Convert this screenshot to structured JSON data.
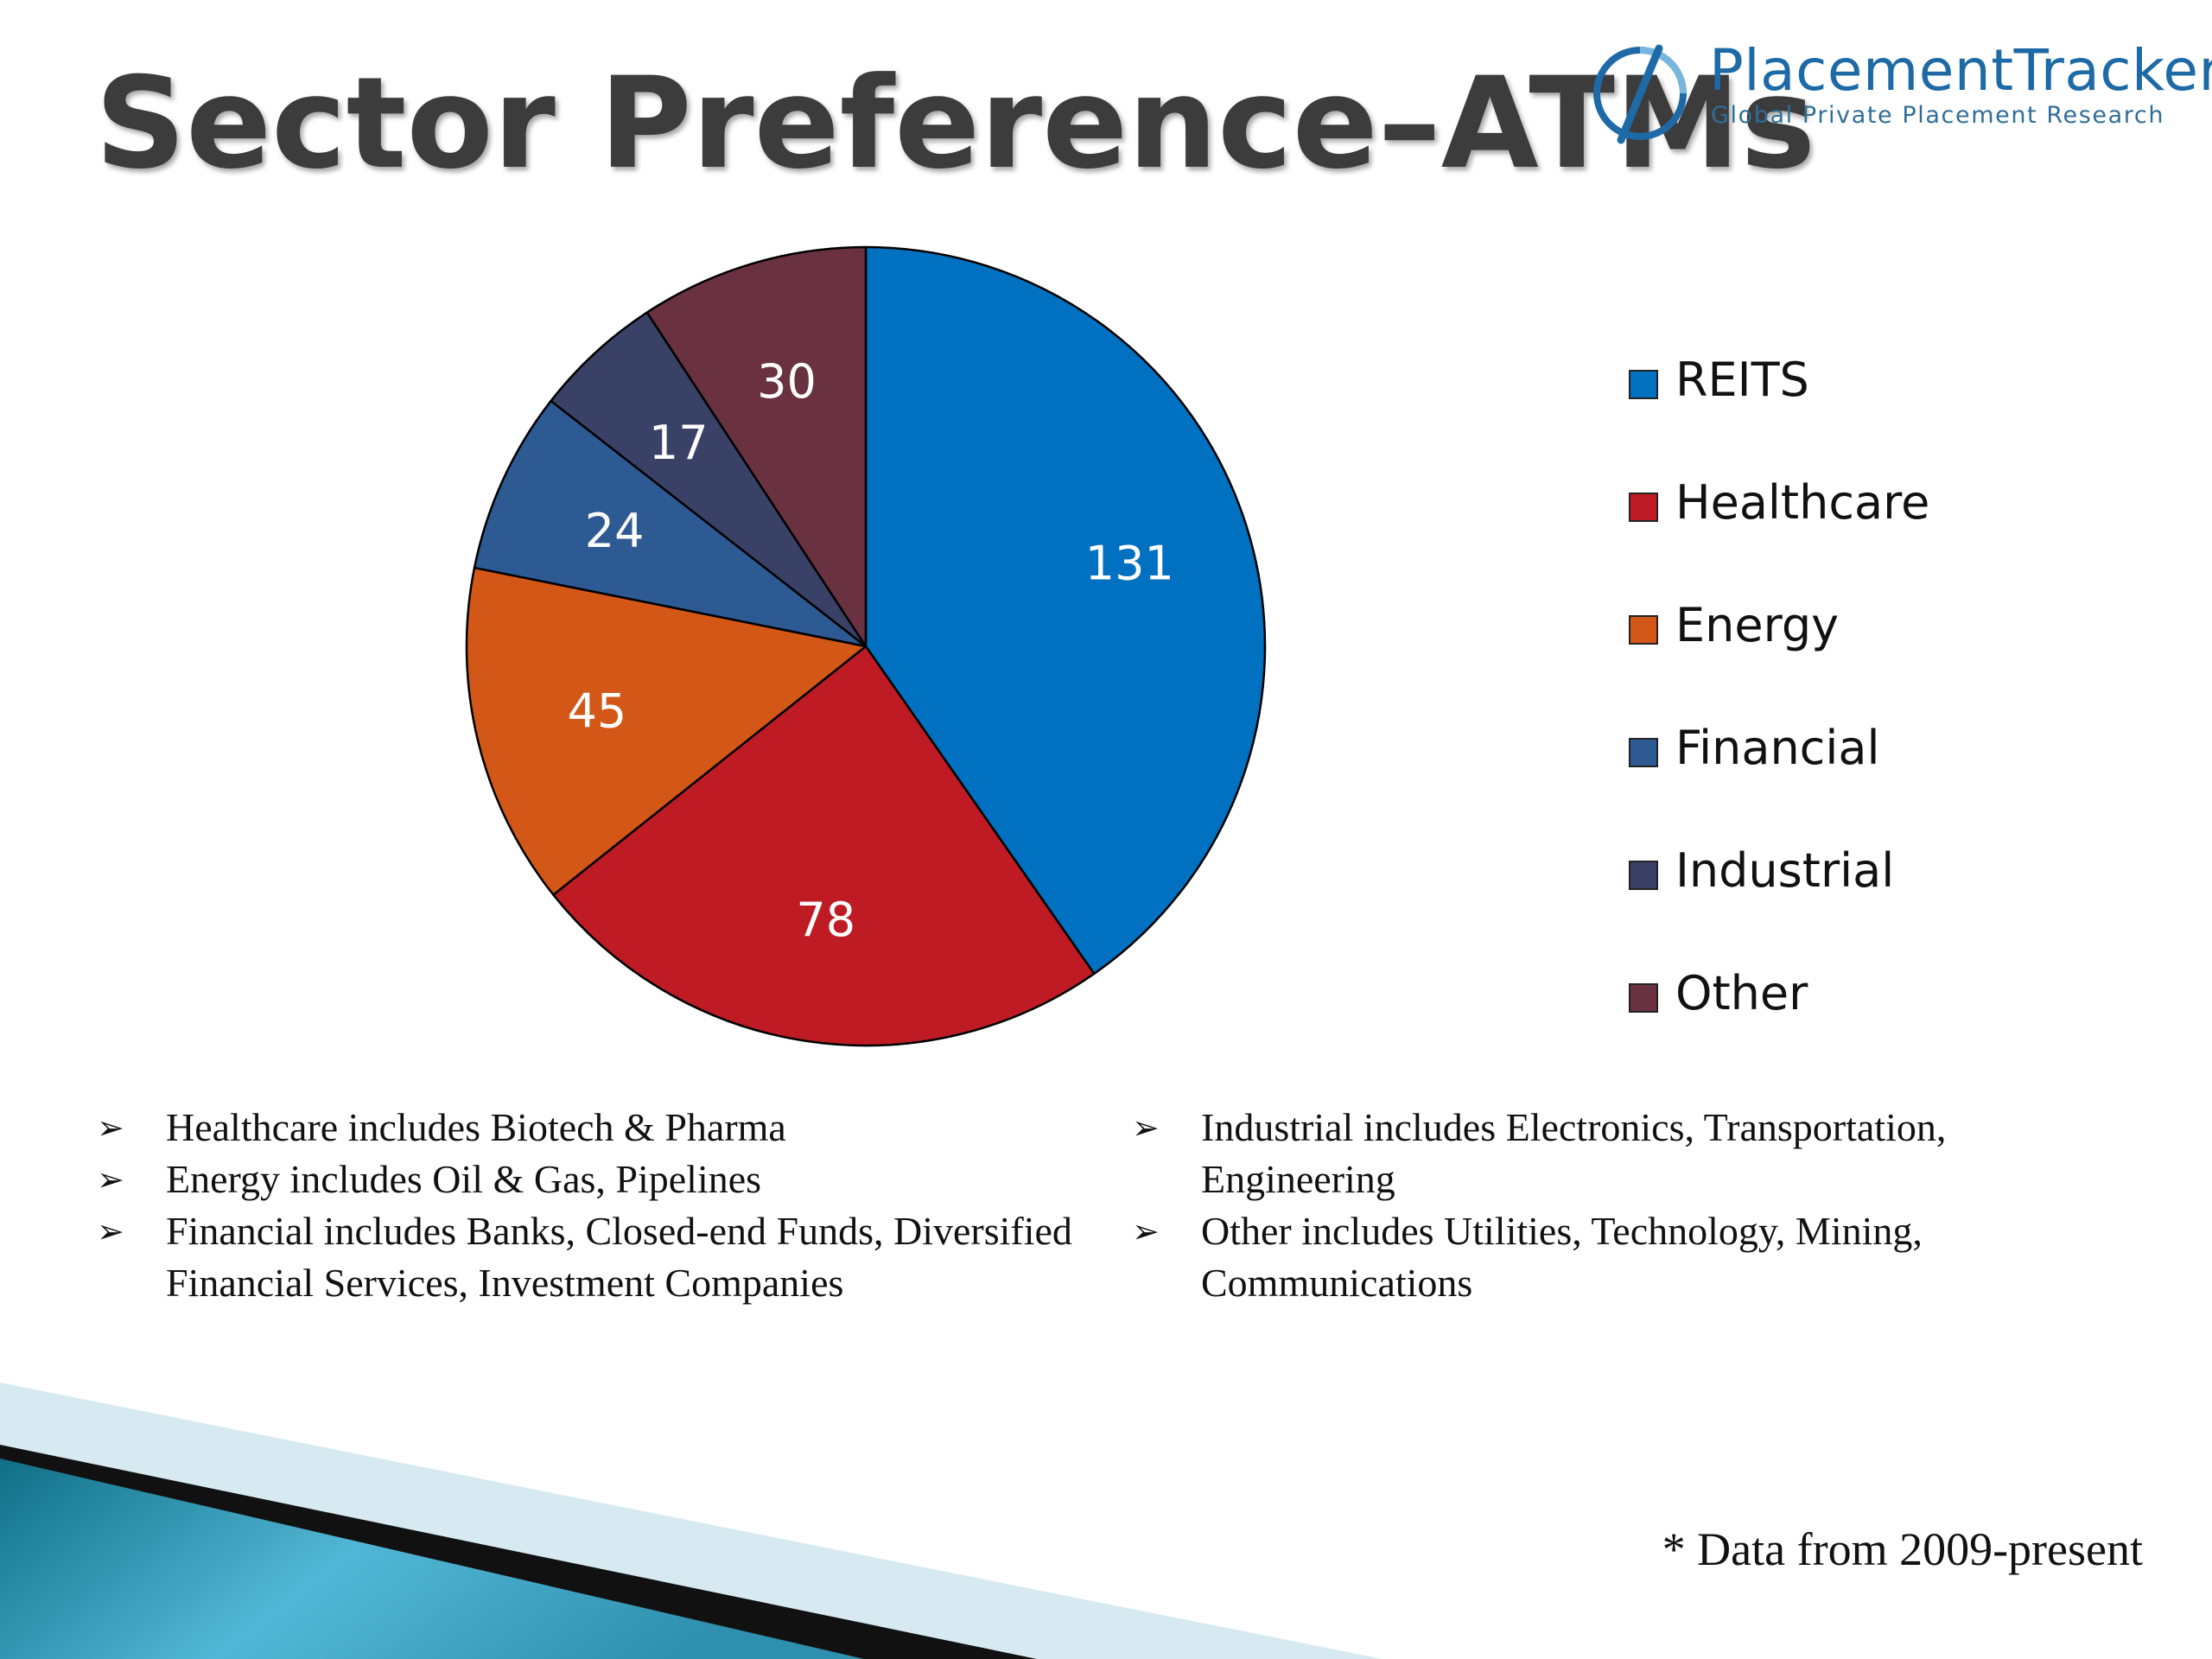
{
  "slide": {
    "title": "Sector Preference–ATMs",
    "logo": {
      "name": "PlacementTracker",
      "tagline": "Global Private Placement Research"
    },
    "notes_left": [
      {
        "text": "Healthcare includes Biotech & Pharma"
      },
      {
        "text": "Energy includes Oil & Gas, Pipelines"
      },
      {
        "text": "Financial includes Banks, Closed-end Funds, Diversified Financial Services, Investment Companies"
      }
    ],
    "notes_right": [
      {
        "text": "Industrial includes Electronics, Transportation, Engineering"
      },
      {
        "text": "Other includes Utilities, Technology, Mining, Communications"
      }
    ],
    "bullet_glyph": "➢",
    "footnote": "* Data from 2009-present"
  },
  "chart_data": {
    "type": "pie",
    "title": "",
    "categories": [
      "REITS",
      "Healthcare",
      "Energy",
      "Financial",
      "Industrial",
      "Other"
    ],
    "values": [
      131,
      78,
      45,
      24,
      17,
      30
    ],
    "colors": [
      "#0070c0",
      "#be1b24",
      "#d35716",
      "#2e5a94",
      "#3a4166",
      "#6a3240"
    ],
    "data_labels": [
      "131",
      "78",
      "45",
      "24",
      "17",
      "30"
    ],
    "start_angle": "12 o'clock",
    "direction": "clockwise",
    "legend_position": "right",
    "slice_label_color": "#ffffff"
  }
}
